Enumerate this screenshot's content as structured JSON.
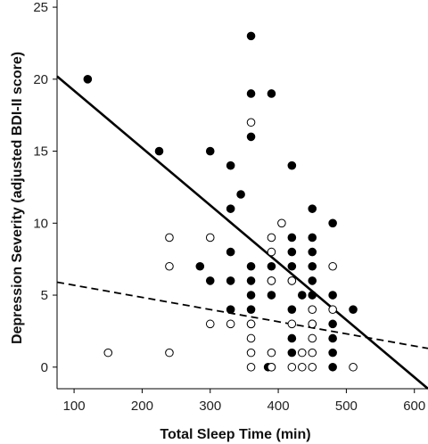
{
  "chart_data": {
    "type": "scatter",
    "title": "",
    "xlabel": "Total Sleep Time (min)",
    "ylabel": "Depression Severity (adjusted BDI-II score)",
    "xlim": [
      75,
      620
    ],
    "ylim": [
      -1.5,
      25.5
    ],
    "xticks": [
      100,
      200,
      300,
      400,
      500,
      600
    ],
    "yticks": [
      0,
      5,
      10,
      15,
      20,
      25
    ],
    "grid": false,
    "legend": "none",
    "series": [
      {
        "marker": "filled-circle",
        "color": "#000000",
        "points": [
          [
            120,
            20
          ],
          [
            225,
            15
          ],
          [
            285,
            7
          ],
          [
            300,
            15
          ],
          [
            300,
            6
          ],
          [
            330,
            14
          ],
          [
            330,
            11
          ],
          [
            330,
            8
          ],
          [
            330,
            6
          ],
          [
            330,
            4
          ],
          [
            345,
            12
          ],
          [
            360,
            23
          ],
          [
            360,
            19
          ],
          [
            360,
            16
          ],
          [
            360,
            7
          ],
          [
            360,
            6
          ],
          [
            360,
            5
          ],
          [
            360,
            4
          ],
          [
            360,
            3
          ],
          [
            385,
            0
          ],
          [
            390,
            19
          ],
          [
            390,
            7
          ],
          [
            390,
            6
          ],
          [
            390,
            5
          ],
          [
            390,
            0
          ],
          [
            420,
            14
          ],
          [
            420,
            9
          ],
          [
            420,
            8
          ],
          [
            420,
            7
          ],
          [
            420,
            6
          ],
          [
            420,
            4
          ],
          [
            420,
            2
          ],
          [
            420,
            1
          ],
          [
            435,
            5
          ],
          [
            450,
            11
          ],
          [
            450,
            9
          ],
          [
            450,
            8
          ],
          [
            450,
            7
          ],
          [
            450,
            6
          ],
          [
            450,
            5
          ],
          [
            450,
            3
          ],
          [
            480,
            10
          ],
          [
            480,
            5
          ],
          [
            480,
            3
          ],
          [
            480,
            2
          ],
          [
            480,
            1
          ],
          [
            480,
            0
          ],
          [
            510,
            4
          ]
        ]
      },
      {
        "marker": "open-circle",
        "color": "#000000",
        "points": [
          [
            150,
            1
          ],
          [
            240,
            9
          ],
          [
            240,
            7
          ],
          [
            240,
            1
          ],
          [
            300,
            9
          ],
          [
            300,
            3
          ],
          [
            330,
            3
          ],
          [
            360,
            17
          ],
          [
            360,
            3
          ],
          [
            360,
            2
          ],
          [
            360,
            1
          ],
          [
            360,
            0
          ],
          [
            390,
            9
          ],
          [
            390,
            8
          ],
          [
            390,
            6
          ],
          [
            390,
            1
          ],
          [
            390,
            0
          ],
          [
            405,
            10
          ],
          [
            420,
            6
          ],
          [
            420,
            3
          ],
          [
            420,
            0
          ],
          [
            435,
            1
          ],
          [
            435,
            0
          ],
          [
            450,
            4
          ],
          [
            450,
            3
          ],
          [
            450,
            2
          ],
          [
            450,
            1
          ],
          [
            450,
            0
          ],
          [
            480,
            7
          ],
          [
            480,
            4
          ],
          [
            510,
            0
          ]
        ]
      }
    ],
    "fit_lines": [
      {
        "style": "solid",
        "color": "#000000",
        "x": [
          75,
          620
        ],
        "y": [
          20.2,
          -1.5
        ]
      },
      {
        "style": "dashed",
        "color": "#000000",
        "x": [
          75,
          620
        ],
        "y": [
          5.9,
          1.3
        ]
      }
    ]
  }
}
